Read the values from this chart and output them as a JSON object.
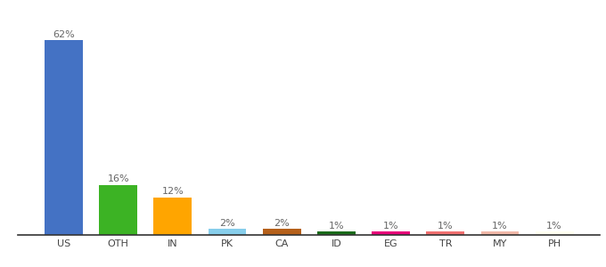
{
  "categories": [
    "US",
    "OTH",
    "IN",
    "PK",
    "CA",
    "ID",
    "EG",
    "TR",
    "MY",
    "PH"
  ],
  "values": [
    62,
    16,
    12,
    2,
    2,
    1,
    1,
    1,
    1,
    1
  ],
  "labels": [
    "62%",
    "16%",
    "12%",
    "2%",
    "2%",
    "1%",
    "1%",
    "1%",
    "1%",
    "1%"
  ],
  "bar_colors": [
    "#4472C4",
    "#3CB324",
    "#FFA500",
    "#87CEEB",
    "#B5601A",
    "#1A6B1A",
    "#E8007A",
    "#F07070",
    "#F0B8A8",
    "#FFFFF0"
  ],
  "title": "",
  "label_fontsize": 8,
  "tick_fontsize": 8,
  "ylim": [
    0,
    68
  ],
  "background_color": "#ffffff"
}
